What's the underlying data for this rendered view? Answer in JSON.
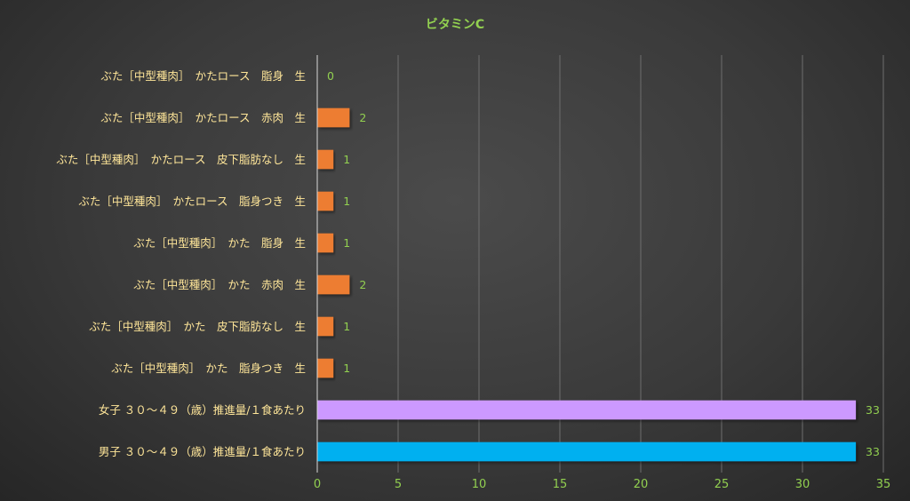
{
  "chart_data": {
    "type": "bar",
    "orientation": "horizontal",
    "title": "ビタミンC",
    "xlabel": "",
    "ylabel": "",
    "xlim": [
      0,
      35
    ],
    "xticks": [
      0,
      5,
      10,
      15,
      20,
      25,
      30,
      35
    ],
    "grid": true,
    "legend": "none",
    "categories": [
      "ぶた［中型種肉］　かたロース　脂身　生",
      "ぶた［中型種肉］　かたロース　赤肉　生",
      "ぶた［中型種肉］　かたロース　皮下脂肪なし　生",
      "ぶた［中型種肉］　かたロース　脂身つき　生",
      "ぶた［中型種肉］　かた　脂身　生",
      "ぶた［中型種肉］　かた　赤肉　生",
      "ぶた［中型種肉］　かた　皮下脂肪なし　生",
      "ぶた［中型種肉］　かた　脂身つき　生",
      "女子 ３０～４９（歳）推進量/１食あたり",
      "男子 ３０～４９（歳）推進量/１食あたり"
    ],
    "values": [
      0,
      2,
      1,
      1,
      1,
      2,
      1,
      1,
      33.3,
      33.3
    ],
    "value_labels": [
      "0",
      "2",
      "1",
      "1",
      "1",
      "2",
      "1",
      "1",
      "33",
      "33"
    ],
    "colors": [
      "#ED7D31",
      "#ED7D31",
      "#ED7D31",
      "#ED7D31",
      "#ED7D31",
      "#ED7D31",
      "#ED7D31",
      "#ED7D31",
      "#CC99FF",
      "#00B0F0"
    ]
  },
  "style": {
    "title_color": "#92D050",
    "category_label_color": "#FFE699",
    "tick_label_color": "#92D050",
    "value_label_color": "#92D050",
    "grid_color": "#6E6E6E",
    "axis_color": "#D9D9D9"
  }
}
